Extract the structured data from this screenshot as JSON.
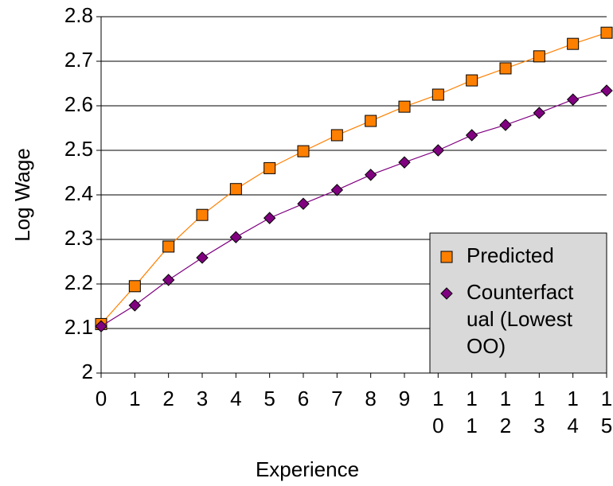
{
  "chart_data": {
    "type": "line",
    "x_label": "Experience",
    "y_label": "Log Wage",
    "categories": [
      "0",
      "1",
      "2",
      "3",
      "4",
      "5",
      "6",
      "7",
      "8",
      "9",
      "10",
      "11",
      "12",
      "13",
      "14",
      "15"
    ],
    "series": [
      {
        "name": "Predicted",
        "color": "#ff8000",
        "marker": "square",
        "values": [
          2.11,
          2.195,
          2.284,
          2.355,
          2.413,
          2.46,
          2.498,
          2.534,
          2.566,
          2.598,
          2.625,
          2.657,
          2.684,
          2.711,
          2.739,
          2.764
        ]
      },
      {
        "name": "Counterfactual (Lowest OO)",
        "color": "#800080",
        "marker": "diamond",
        "values": [
          2.105,
          2.152,
          2.209,
          2.259,
          2.305,
          2.348,
          2.38,
          2.411,
          2.445,
          2.473,
          2.5,
          2.534,
          2.557,
          2.584,
          2.614,
          2.634
        ]
      }
    ],
    "ylim": [
      2,
      2.8
    ],
    "yticks": [
      2,
      2.1,
      2.2,
      2.3,
      2.4,
      2.5,
      2.6,
      2.7,
      2.8
    ],
    "grid": true,
    "legend_position": "lower right"
  }
}
